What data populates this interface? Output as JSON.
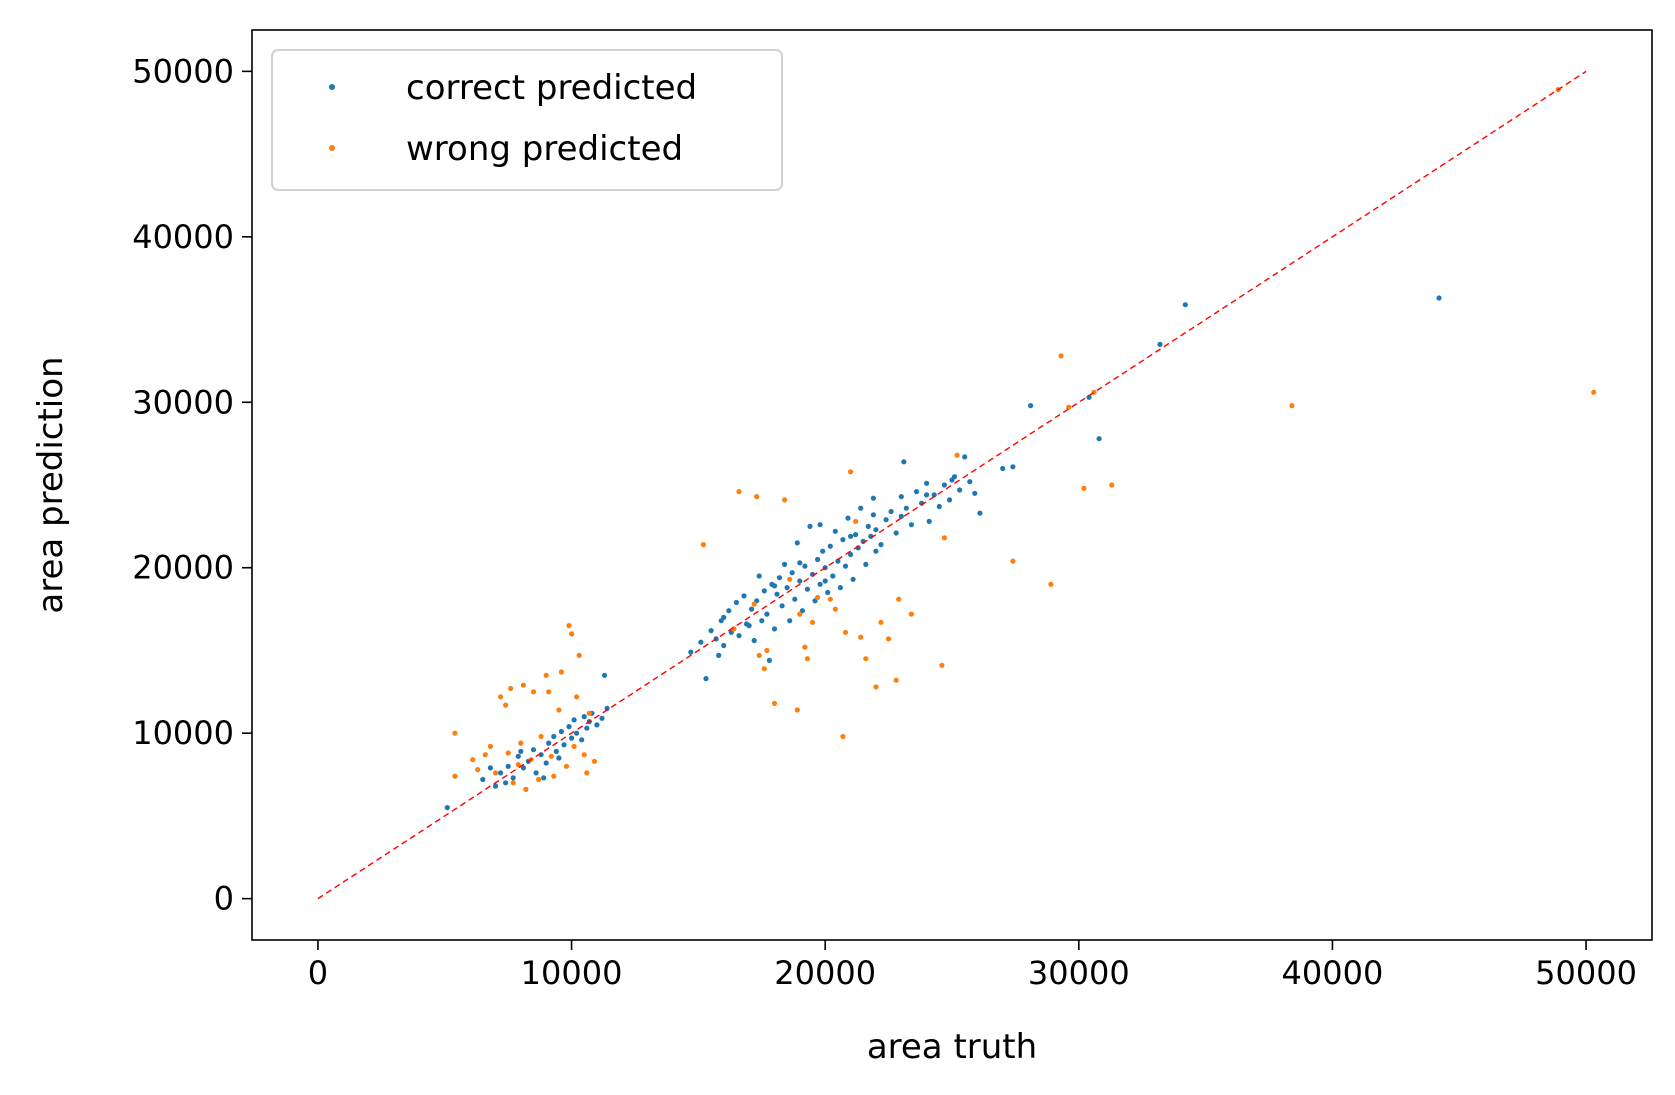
{
  "chart_data": {
    "type": "scatter",
    "title": "",
    "xlabel": "area truth",
    "ylabel": "area prediction",
    "xlim": [
      -2600,
      52600
    ],
    "ylim": [
      -2500,
      52500
    ],
    "xticks": [
      0,
      10000,
      20000,
      30000,
      40000,
      50000
    ],
    "yticks": [
      0,
      10000,
      20000,
      30000,
      40000,
      50000
    ],
    "xtick_labels": [
      "0",
      "10000",
      "20000",
      "30000",
      "40000",
      "50000"
    ],
    "ytick_labels": [
      "0",
      "10000",
      "20000",
      "30000",
      "40000",
      "50000"
    ],
    "grid": false,
    "legend_position": "top-left",
    "reference_line": {
      "style": "dashed",
      "color": "#ff0000",
      "x": [
        0,
        50000
      ],
      "y": [
        0,
        50000
      ]
    },
    "series": [
      {
        "name": "correct predicted",
        "color": "#1f77b4",
        "points": [
          [
            5100,
            5500
          ],
          [
            6500,
            7200
          ],
          [
            7000,
            6800
          ],
          [
            7200,
            7600
          ],
          [
            7500,
            8000
          ],
          [
            7700,
            7300
          ],
          [
            7900,
            8600
          ],
          [
            8100,
            7900
          ],
          [
            8300,
            8300
          ],
          [
            8500,
            9000
          ],
          [
            8600,
            7600
          ],
          [
            8800,
            8700
          ],
          [
            9000,
            8200
          ],
          [
            9100,
            9400
          ],
          [
            9300,
            9800
          ],
          [
            9400,
            8900
          ],
          [
            9600,
            10100
          ],
          [
            9700,
            9300
          ],
          [
            9900,
            10400
          ],
          [
            10000,
            9700
          ],
          [
            10100,
            10800
          ],
          [
            10200,
            10000
          ],
          [
            10400,
            9600
          ],
          [
            10500,
            11000
          ],
          [
            10600,
            10300
          ],
          [
            10700,
            10700
          ],
          [
            10800,
            11200
          ],
          [
            11000,
            10500
          ],
          [
            11200,
            10900
          ],
          [
            11300,
            13500
          ],
          [
            11400,
            11500
          ],
          [
            8000,
            8900
          ],
          [
            7400,
            7000
          ],
          [
            8900,
            7300
          ],
          [
            9500,
            8500
          ],
          [
            6800,
            7900
          ],
          [
            14700,
            14900
          ],
          [
            15100,
            15500
          ],
          [
            15300,
            13300
          ],
          [
            15500,
            16200
          ],
          [
            15700,
            15700
          ],
          [
            15900,
            16800
          ],
          [
            16000,
            15300
          ],
          [
            16200,
            17400
          ],
          [
            16300,
            16100
          ],
          [
            16500,
            17900
          ],
          [
            16600,
            15900
          ],
          [
            16800,
            18300
          ],
          [
            16900,
            16600
          ],
          [
            17100,
            17500
          ],
          [
            17200,
            15600
          ],
          [
            17300,
            18000
          ],
          [
            17500,
            16800
          ],
          [
            17600,
            18600
          ],
          [
            17700,
            17200
          ],
          [
            17900,
            19000
          ],
          [
            18000,
            16300
          ],
          [
            18100,
            18400
          ],
          [
            18200,
            19400
          ],
          [
            18300,
            17700
          ],
          [
            18400,
            20200
          ],
          [
            18500,
            18800
          ],
          [
            18600,
            16800
          ],
          [
            18700,
            19700
          ],
          [
            18800,
            18100
          ],
          [
            18900,
            21500
          ],
          [
            19000,
            19200
          ],
          [
            19100,
            17400
          ],
          [
            19200,
            20100
          ],
          [
            19300,
            18700
          ],
          [
            19400,
            22500
          ],
          [
            19500,
            19600
          ],
          [
            19600,
            18000
          ],
          [
            19700,
            20500
          ],
          [
            19800,
            19000
          ],
          [
            19900,
            21000
          ],
          [
            20000,
            20000
          ],
          [
            20100,
            18500
          ],
          [
            20200,
            21300
          ],
          [
            20300,
            19500
          ],
          [
            20400,
            22200
          ],
          [
            20500,
            20400
          ],
          [
            20600,
            18800
          ],
          [
            20700,
            21700
          ],
          [
            20800,
            20100
          ],
          [
            20900,
            23000
          ],
          [
            21000,
            20800
          ],
          [
            21100,
            19300
          ],
          [
            21200,
            22000
          ],
          [
            21300,
            21200
          ],
          [
            21400,
            23600
          ],
          [
            21500,
            21600
          ],
          [
            21600,
            20200
          ],
          [
            21700,
            22500
          ],
          [
            21800,
            21900
          ],
          [
            21900,
            23200
          ],
          [
            22000,
            22300
          ],
          [
            22200,
            21400
          ],
          [
            22400,
            22900
          ],
          [
            22600,
            23400
          ],
          [
            22800,
            22100
          ],
          [
            23000,
            24300
          ],
          [
            23100,
            26400
          ],
          [
            23200,
            23600
          ],
          [
            23400,
            22600
          ],
          [
            23600,
            24600
          ],
          [
            23800,
            23900
          ],
          [
            24000,
            25100
          ],
          [
            24100,
            22800
          ],
          [
            24300,
            24400
          ],
          [
            24500,
            23700
          ],
          [
            24700,
            25000
          ],
          [
            24900,
            24100
          ],
          [
            25100,
            25500
          ],
          [
            25300,
            24700
          ],
          [
            25500,
            26700
          ],
          [
            25700,
            25200
          ],
          [
            25900,
            24500
          ],
          [
            26100,
            23300
          ],
          [
            27000,
            26000
          ],
          [
            27400,
            26100
          ],
          [
            28100,
            29800
          ],
          [
            30400,
            30300
          ],
          [
            30800,
            27800
          ],
          [
            33200,
            33500
          ],
          [
            34200,
            35900
          ],
          [
            44200,
            36300
          ],
          [
            16000,
            17000
          ],
          [
            17000,
            16500
          ],
          [
            18000,
            18900
          ],
          [
            19000,
            20300
          ],
          [
            20000,
            19200
          ],
          [
            21000,
            21900
          ],
          [
            22000,
            21000
          ],
          [
            23000,
            23100
          ],
          [
            24000,
            24400
          ],
          [
            25000,
            25300
          ],
          [
            17400,
            19500
          ],
          [
            19800,
            22600
          ],
          [
            21900,
            24200
          ],
          [
            15800,
            14700
          ],
          [
            17800,
            14400
          ]
        ]
      },
      {
        "name": "wrong predicted",
        "color": "#ff7f0e",
        "points": [
          [
            5400,
            10000
          ],
          [
            5400,
            7400
          ],
          [
            6100,
            8400
          ],
          [
            6300,
            7800
          ],
          [
            6600,
            8700
          ],
          [
            6800,
            9200
          ],
          [
            7000,
            7600
          ],
          [
            7200,
            12200
          ],
          [
            7400,
            11700
          ],
          [
            7500,
            8800
          ],
          [
            7600,
            12700
          ],
          [
            7700,
            7000
          ],
          [
            7900,
            8100
          ],
          [
            8000,
            9400
          ],
          [
            8100,
            12900
          ],
          [
            8200,
            6600
          ],
          [
            8400,
            8400
          ],
          [
            8500,
            12500
          ],
          [
            8700,
            7200
          ],
          [
            8800,
            9800
          ],
          [
            9000,
            13500
          ],
          [
            9100,
            12500
          ],
          [
            9200,
            8600
          ],
          [
            9300,
            7400
          ],
          [
            9500,
            11400
          ],
          [
            9600,
            13700
          ],
          [
            9800,
            8000
          ],
          [
            9900,
            16500
          ],
          [
            10000,
            16000
          ],
          [
            10100,
            9200
          ],
          [
            10200,
            12200
          ],
          [
            10300,
            14700
          ],
          [
            10500,
            8700
          ],
          [
            10600,
            7600
          ],
          [
            10700,
            11200
          ],
          [
            10900,
            8300
          ],
          [
            15200,
            21400
          ],
          [
            16600,
            24600
          ],
          [
            17300,
            24300
          ],
          [
            17400,
            14700
          ],
          [
            17600,
            13900
          ],
          [
            17700,
            15000
          ],
          [
            18000,
            11800
          ],
          [
            18400,
            24100
          ],
          [
            18900,
            11400
          ],
          [
            19000,
            17200
          ],
          [
            19200,
            15200
          ],
          [
            19300,
            14500
          ],
          [
            19500,
            16700
          ],
          [
            20200,
            18100
          ],
          [
            20700,
            9800
          ],
          [
            20800,
            16100
          ],
          [
            21000,
            25800
          ],
          [
            21200,
            22800
          ],
          [
            21400,
            15800
          ],
          [
            21600,
            14500
          ],
          [
            22000,
            12800
          ],
          [
            22200,
            16700
          ],
          [
            22500,
            15700
          ],
          [
            22800,
            13200
          ],
          [
            22900,
            18100
          ],
          [
            23400,
            17200
          ],
          [
            24600,
            14100
          ],
          [
            24700,
            21800
          ],
          [
            25200,
            26800
          ],
          [
            27400,
            20400
          ],
          [
            28900,
            19000
          ],
          [
            29300,
            32800
          ],
          [
            29600,
            29700
          ],
          [
            30200,
            24800
          ],
          [
            30600,
            30600
          ],
          [
            31300,
            25000
          ],
          [
            38400,
            29800
          ],
          [
            48900,
            48900
          ],
          [
            50300,
            30600
          ],
          [
            18600,
            19300
          ],
          [
            19700,
            18200
          ],
          [
            20400,
            17500
          ],
          [
            17200,
            17800
          ],
          [
            16400,
            16300
          ]
        ]
      }
    ]
  }
}
